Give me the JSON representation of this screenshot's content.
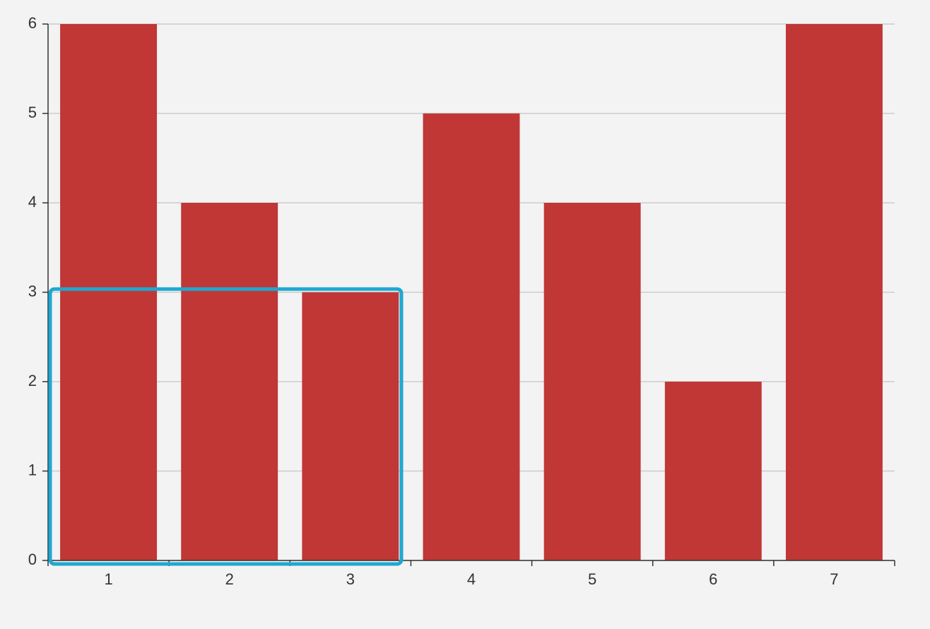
{
  "chart_data": {
    "type": "bar",
    "categories": [
      "1",
      "2",
      "3",
      "4",
      "5",
      "6",
      "7"
    ],
    "values": [
      6,
      4,
      3,
      5,
      4,
      2,
      6
    ],
    "color": "#c03736",
    "ylim": [
      0,
      6
    ],
    "yticks": [
      0,
      1,
      2,
      3,
      4,
      5,
      6
    ],
    "grid": true
  }
}
